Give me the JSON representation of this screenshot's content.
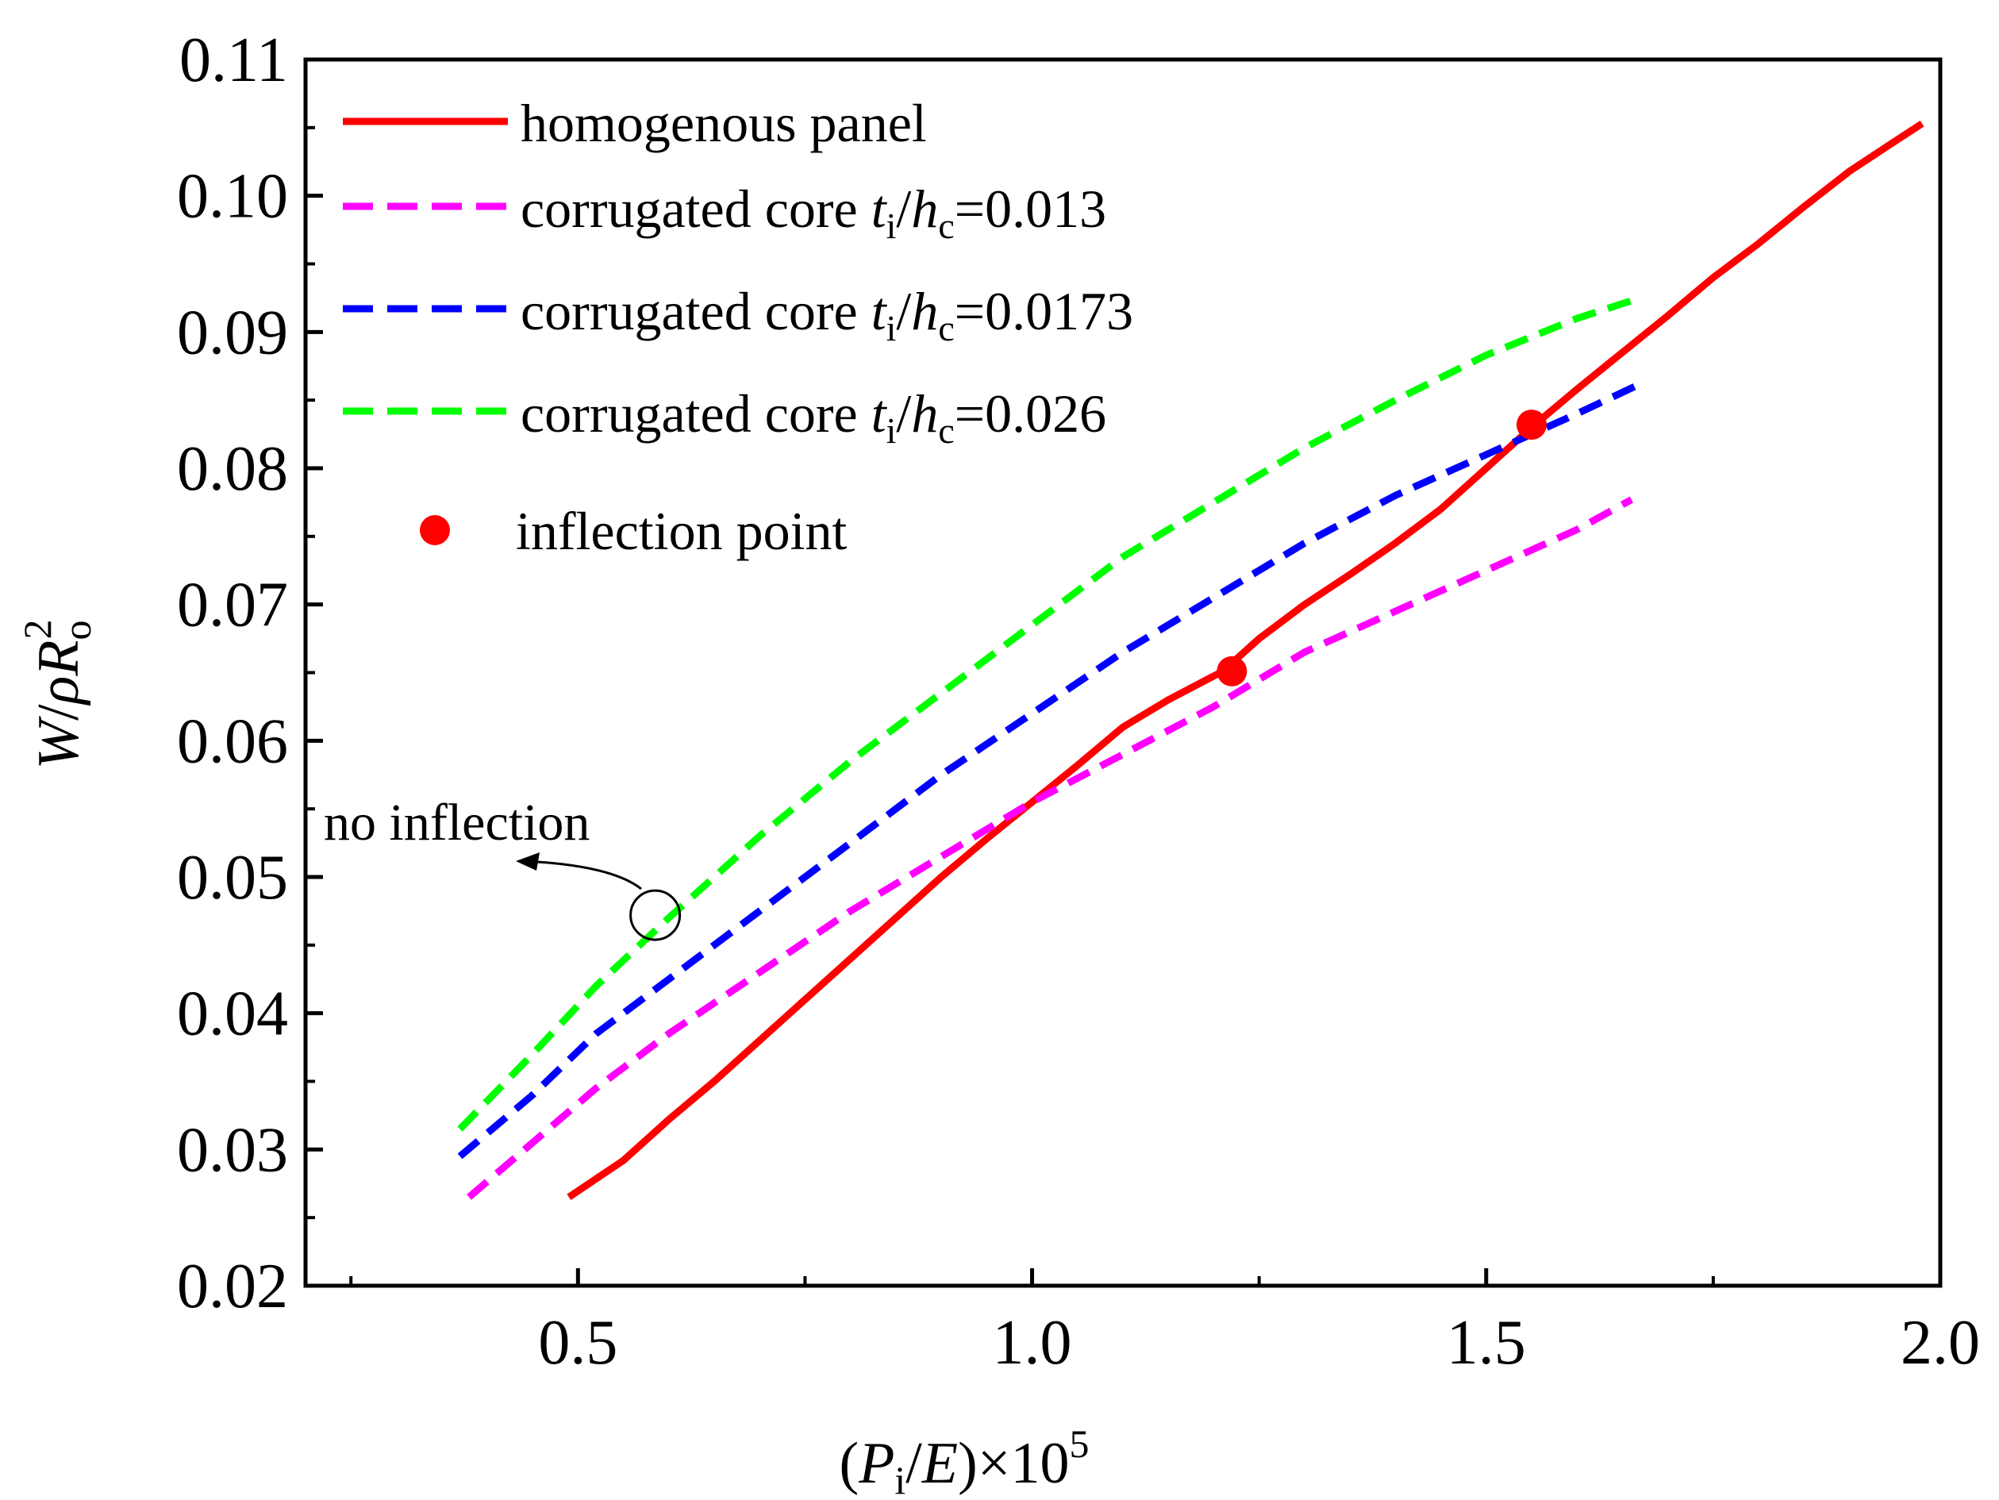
{
  "chart_data": {
    "type": "line",
    "title": "",
    "xlabel": {
      "lead": "(",
      "var": "P",
      "sub": "i",
      "mid": "/",
      "var2": "E",
      "tail": ")×10",
      "sup": "5"
    },
    "ylabel": {
      "var": "W",
      "slash": "/",
      "rho": "ρ",
      "var2": "R",
      "sub": "o",
      "sup": "2"
    },
    "xlim": [
      0.2,
      2.0
    ],
    "ylim": [
      0.02,
      0.11
    ],
    "x_ticks": [
      0.5,
      1.0,
      1.5,
      2.0
    ],
    "x_tick_labels": [
      "0.5",
      "1.0",
      "1.5",
      "2.0"
    ],
    "x_minor_ticks": [
      0.25,
      0.75,
      1.25,
      1.75
    ],
    "y_ticks": [
      0.02,
      0.03,
      0.04,
      0.05,
      0.06,
      0.07,
      0.08,
      0.09,
      0.1,
      0.11
    ],
    "y_tick_labels": [
      "0.02",
      "0.03",
      "0.04",
      "0.05",
      "0.06",
      "0.07",
      "0.08",
      "0.09",
      "0.10",
      "0.11"
    ],
    "y_minor_ticks": [
      0.025,
      0.035,
      0.045,
      0.055,
      0.065,
      0.075,
      0.085,
      0.095,
      0.105
    ],
    "series": [
      {
        "name": "homogenous panel",
        "legend": {
          "pre": "homogenous panel"
        },
        "color": "#ff0000",
        "style": "solid",
        "x": [
          0.49,
          0.55,
          0.6,
          0.65,
          0.7,
          0.75,
          0.8,
          0.85,
          0.9,
          0.95,
          1.0,
          1.05,
          1.1,
          1.15,
          1.21,
          1.25,
          1.3,
          1.35,
          1.4,
          1.45,
          1.5,
          1.55,
          1.6,
          1.65,
          1.7,
          1.75,
          1.8,
          1.85,
          1.9,
          1.95,
          1.98
        ],
        "y": [
          0.0265,
          0.0292,
          0.0322,
          0.035,
          0.038,
          0.041,
          0.044,
          0.047,
          0.05,
          0.0528,
          0.0555,
          0.0582,
          0.061,
          0.063,
          0.0651,
          0.0675,
          0.07,
          0.0722,
          0.0745,
          0.077,
          0.08,
          0.083,
          0.0858,
          0.0885,
          0.0912,
          0.094,
          0.0965,
          0.0992,
          0.1018,
          0.104,
          0.1053
        ]
      },
      {
        "name": "corrugated core ti/hc=0.013",
        "legend": {
          "pre": "corrugated core ",
          "v1": "t",
          "s1": "i",
          "sl": "/",
          "v2": "h",
          "s2": "c",
          "val": "=0.013"
        },
        "color": "#ff00ff",
        "style": "dashed",
        "x": [
          0.38,
          0.45,
          0.52,
          0.6,
          0.7,
          0.8,
          0.9,
          1.0,
          1.1,
          1.2,
          1.3,
          1.4,
          1.5,
          1.6,
          1.66
        ],
        "y": [
          0.0265,
          0.0305,
          0.0345,
          0.0385,
          0.043,
          0.0475,
          0.0515,
          0.0555,
          0.059,
          0.0625,
          0.0665,
          0.0695,
          0.0725,
          0.0755,
          0.0777
        ]
      },
      {
        "name": "corrugated core ti/hc=0.0173",
        "legend": {
          "pre": "corrugated core ",
          "v1": "t",
          "s1": "i",
          "sl": "/",
          "v2": "h",
          "s2": "c",
          "val": "=0.0173"
        },
        "color": "#0000ff",
        "style": "dashed",
        "x": [
          0.37,
          0.45,
          0.52,
          0.6,
          0.7,
          0.8,
          0.9,
          1.0,
          1.1,
          1.2,
          1.3,
          1.4,
          1.5,
          1.6,
          1.67
        ],
        "y": [
          0.0295,
          0.034,
          0.0385,
          0.0425,
          0.0475,
          0.0525,
          0.0575,
          0.062,
          0.0665,
          0.0705,
          0.0745,
          0.078,
          0.081,
          0.084,
          0.0862
        ]
      },
      {
        "name": "corrugated core ti/hc=0.026",
        "legend": {
          "pre": "corrugated core ",
          "v1": "t",
          "s1": "i",
          "sl": "/",
          "v2": "h",
          "s2": "c",
          "val": "=0.026"
        },
        "color": "#00ff00",
        "style": "dashed",
        "x": [
          0.37,
          0.45,
          0.52,
          0.6,
          0.7,
          0.8,
          0.9,
          1.0,
          1.1,
          1.2,
          1.3,
          1.4,
          1.5,
          1.6,
          1.66
        ],
        "y": [
          0.0315,
          0.037,
          0.042,
          0.047,
          0.053,
          0.0585,
          0.0635,
          0.0685,
          0.0735,
          0.0775,
          0.0815,
          0.085,
          0.0883,
          0.091,
          0.0923
        ]
      }
    ],
    "markers": {
      "name": "inflection point",
      "color": "#ff0000",
      "points": [
        {
          "x": 1.22,
          "y": 0.0651
        },
        {
          "x": 1.55,
          "y": 0.0832
        }
      ]
    },
    "annotation": {
      "text": "no inflection",
      "target": {
        "x": 0.585,
        "y": 0.0472
      }
    }
  }
}
